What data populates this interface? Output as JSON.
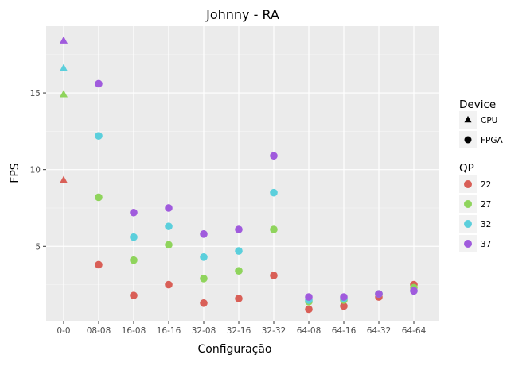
{
  "chart_data": {
    "type": "scatter",
    "title": "Johnny - RA",
    "xlabel": "Configuração",
    "ylabel": "FPS",
    "categories": [
      "0-0",
      "08-08",
      "16-08",
      "16-16",
      "32-08",
      "32-16",
      "32-32",
      "64-08",
      "64-16",
      "64-32",
      "64-64"
    ],
    "ylim": [
      0.15,
      19.35
    ],
    "yticks": [
      5,
      10,
      15
    ],
    "grid": true,
    "legend_position": "right",
    "shape_legend": {
      "title": "Device",
      "items": [
        {
          "label": "CPU",
          "shape": "triangle"
        },
        {
          "label": "FPGA",
          "shape": "circle"
        }
      ]
    },
    "color_legend": {
      "title": "QP",
      "items": [
        {
          "label": "22",
          "color": "#d95f57"
        },
        {
          "label": "27",
          "color": "#8fd45c"
        },
        {
          "label": "32",
          "color": "#5bcfdc"
        },
        {
          "label": "37",
          "color": "#a05bdd"
        }
      ]
    },
    "series": [
      {
        "name": "22",
        "color": "#d95f57",
        "points": [
          {
            "x": "0-0",
            "y": 9.3,
            "device": "CPU"
          },
          {
            "x": "08-08",
            "y": 3.8,
            "device": "FPGA"
          },
          {
            "x": "16-08",
            "y": 1.8,
            "device": "FPGA"
          },
          {
            "x": "16-16",
            "y": 2.5,
            "device": "FPGA"
          },
          {
            "x": "32-08",
            "y": 1.3,
            "device": "FPGA"
          },
          {
            "x": "32-16",
            "y": 1.6,
            "device": "FPGA"
          },
          {
            "x": "32-32",
            "y": 3.1,
            "device": "FPGA"
          },
          {
            "x": "64-08",
            "y": 0.9,
            "device": "FPGA"
          },
          {
            "x": "64-16",
            "y": 1.1,
            "device": "FPGA"
          },
          {
            "x": "64-32",
            "y": 1.7,
            "device": "FPGA"
          },
          {
            "x": "64-64",
            "y": 2.5,
            "device": "FPGA"
          }
        ]
      },
      {
        "name": "27",
        "color": "#8fd45c",
        "points": [
          {
            "x": "0-0",
            "y": 14.9,
            "device": "CPU"
          },
          {
            "x": "08-08",
            "y": 8.2,
            "device": "FPGA"
          },
          {
            "x": "16-08",
            "y": 4.1,
            "device": "FPGA"
          },
          {
            "x": "16-16",
            "y": 5.1,
            "device": "FPGA"
          },
          {
            "x": "32-08",
            "y": 2.9,
            "device": "FPGA"
          },
          {
            "x": "32-16",
            "y": 3.4,
            "device": "FPGA"
          },
          {
            "x": "32-32",
            "y": 6.1,
            "device": "FPGA"
          },
          {
            "x": "64-08",
            "y": 1.4,
            "device": "FPGA"
          },
          {
            "x": "64-16",
            "y": 1.5,
            "device": "FPGA"
          },
          {
            "x": "64-32",
            "y": 1.9,
            "device": "FPGA"
          },
          {
            "x": "64-64",
            "y": 2.3,
            "device": "FPGA"
          }
        ]
      },
      {
        "name": "32",
        "color": "#5bcfdc",
        "points": [
          {
            "x": "0-0",
            "y": 16.6,
            "device": "CPU"
          },
          {
            "x": "08-08",
            "y": 12.2,
            "device": "FPGA"
          },
          {
            "x": "16-08",
            "y": 5.6,
            "device": "FPGA"
          },
          {
            "x": "16-16",
            "y": 6.3,
            "device": "FPGA"
          },
          {
            "x": "32-08",
            "y": 4.3,
            "device": "FPGA"
          },
          {
            "x": "32-16",
            "y": 4.7,
            "device": "FPGA"
          },
          {
            "x": "32-32",
            "y": 8.5,
            "device": "FPGA"
          },
          {
            "x": "64-08",
            "y": 1.5,
            "device": "FPGA"
          },
          {
            "x": "64-16",
            "y": 1.6,
            "device": "FPGA"
          },
          {
            "x": "64-32",
            "y": 1.9,
            "device": "FPGA"
          },
          {
            "x": "64-64",
            "y": 2.1,
            "device": "FPGA"
          }
        ]
      },
      {
        "name": "37",
        "color": "#a05bdd",
        "points": [
          {
            "x": "0-0",
            "y": 18.4,
            "device": "CPU"
          },
          {
            "x": "08-08",
            "y": 15.6,
            "device": "FPGA"
          },
          {
            "x": "16-08",
            "y": 7.2,
            "device": "FPGA"
          },
          {
            "x": "16-16",
            "y": 7.5,
            "device": "FPGA"
          },
          {
            "x": "32-08",
            "y": 5.8,
            "device": "FPGA"
          },
          {
            "x": "32-16",
            "y": 6.1,
            "device": "FPGA"
          },
          {
            "x": "32-32",
            "y": 10.9,
            "device": "FPGA"
          },
          {
            "x": "64-08",
            "y": 1.7,
            "device": "FPGA"
          },
          {
            "x": "64-16",
            "y": 1.7,
            "device": "FPGA"
          },
          {
            "x": "64-32",
            "y": 1.9,
            "device": "FPGA"
          },
          {
            "x": "64-64",
            "y": 2.1,
            "device": "FPGA"
          }
        ]
      }
    ]
  }
}
